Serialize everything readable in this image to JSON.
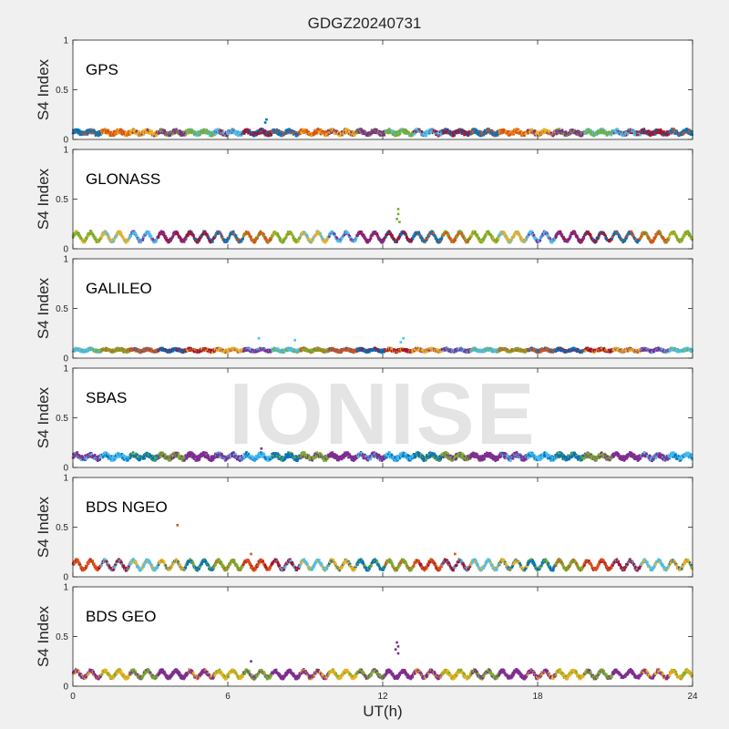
{
  "figure": {
    "title": "GDGZ20240731",
    "xlabel": "UT(h)",
    "watermark": "IONISE"
  },
  "colors": {
    "background": "#f0f0f0",
    "axes_bg": "#ffffff",
    "axis": "#262626",
    "series_palette": [
      "#0072BD",
      "#D95319",
      "#EDB120",
      "#7E2F8E",
      "#77AC30",
      "#4DBEEE",
      "#A2142F"
    ]
  },
  "chart_data": [
    {
      "type": "scatter",
      "panel_label": "GPS",
      "ylabel": "S4 Index",
      "xlim": [
        0,
        24
      ],
      "ylim": [
        0,
        1
      ],
      "xticks": [
        0,
        6,
        12,
        18,
        24
      ],
      "yticks": [
        0,
        0.5,
        1
      ],
      "baseline": 0.07,
      "wave_amp": 0.015,
      "spread": 0.045,
      "colors": [
        "#0072BD",
        "#D95319",
        "#EDB120",
        "#7E2F8E",
        "#77AC30",
        "#4DBEEE",
        "#A2142F"
      ],
      "outliers": [
        [
          7.5,
          0.2
        ],
        [
          7.45,
          0.17
        ]
      ]
    },
    {
      "type": "scatter",
      "panel_label": "GLONASS",
      "ylabel": "S4 Index",
      "xlim": [
        0,
        24
      ],
      "ylim": [
        0,
        1
      ],
      "xticks": [
        0,
        6,
        12,
        18,
        24
      ],
      "yticks": [
        0,
        0.5,
        1
      ],
      "baseline": 0.12,
      "wave_amp": 0.045,
      "spread": 0.03,
      "colors": [
        "#77AC30",
        "#EDB120",
        "#4DBEEE",
        "#7E2F8E",
        "#A2142F",
        "#0072BD",
        "#D95319"
      ],
      "outliers": [
        [
          12.6,
          0.4
        ],
        [
          12.6,
          0.35
        ],
        [
          12.55,
          0.3
        ],
        [
          12.65,
          0.27
        ]
      ]
    },
    {
      "type": "scatter",
      "panel_label": "GALILEO",
      "ylabel": "S4 Index",
      "xlim": [
        0,
        24
      ],
      "ylim": [
        0,
        1
      ],
      "xticks": [
        0,
        6,
        12,
        18,
        24
      ],
      "yticks": [
        0,
        0.5,
        1
      ],
      "baseline": 0.08,
      "wave_amp": 0.01,
      "spread": 0.03,
      "colors": [
        "#4DBEEE",
        "#77AC30",
        "#D95319",
        "#0072BD",
        "#A2142F",
        "#EDB120",
        "#7E2F8E"
      ],
      "outliers": [
        [
          7.2,
          0.2
        ],
        [
          12.8,
          0.2
        ],
        [
          12.7,
          0.16
        ],
        [
          8.6,
          0.18
        ]
      ]
    },
    {
      "type": "scatter",
      "panel_label": "SBAS",
      "ylabel": "S4 Index",
      "xlim": [
        0,
        24
      ],
      "ylim": [
        0,
        1
      ],
      "xticks": [
        0,
        6,
        12,
        18,
        24
      ],
      "yticks": [
        0,
        0.5,
        1
      ],
      "baseline": 0.11,
      "wave_amp": 0.02,
      "spread": 0.05,
      "colors": [
        "#7E2F8E",
        "#4DBEEE",
        "#0072BD",
        "#77AC30",
        "#7E2F8E"
      ],
      "outliers": [
        [
          7.3,
          0.19
        ]
      ]
    },
    {
      "type": "scatter",
      "panel_label": "BDS NGEO",
      "ylabel": "S4 Index",
      "xlim": [
        0,
        24
      ],
      "ylim": [
        0,
        1
      ],
      "xticks": [
        0,
        6,
        12,
        18,
        24
      ],
      "yticks": [
        0,
        0.5,
        1
      ],
      "baseline": 0.12,
      "wave_amp": 0.045,
      "spread": 0.03,
      "colors": [
        "#D95319",
        "#A2142F",
        "#4DBEEE",
        "#EDB120",
        "#0072BD",
        "#77AC30"
      ],
      "outliers": [
        [
          4.05,
          0.52
        ],
        [
          6.9,
          0.23
        ],
        [
          14.8,
          0.23
        ]
      ]
    },
    {
      "type": "scatter",
      "panel_label": "BDS GEO",
      "ylabel": "S4 Index",
      "xlim": [
        0,
        24
      ],
      "ylim": [
        0,
        1
      ],
      "xticks": [
        0,
        6,
        12,
        18,
        24
      ],
      "yticks": [
        0,
        0.5,
        1
      ],
      "xtick_labels": [
        "0",
        "6",
        "12",
        "18",
        "24"
      ],
      "baseline": 0.12,
      "wave_amp": 0.035,
      "spread": 0.035,
      "colors": [
        "#7E2F8E",
        "#EDB120",
        "#77AC30",
        "#7E2F8E"
      ],
      "outliers": [
        [
          12.55,
          0.44
        ],
        [
          12.6,
          0.4
        ],
        [
          12.5,
          0.37
        ],
        [
          12.6,
          0.33
        ],
        [
          6.9,
          0.25
        ]
      ]
    }
  ]
}
